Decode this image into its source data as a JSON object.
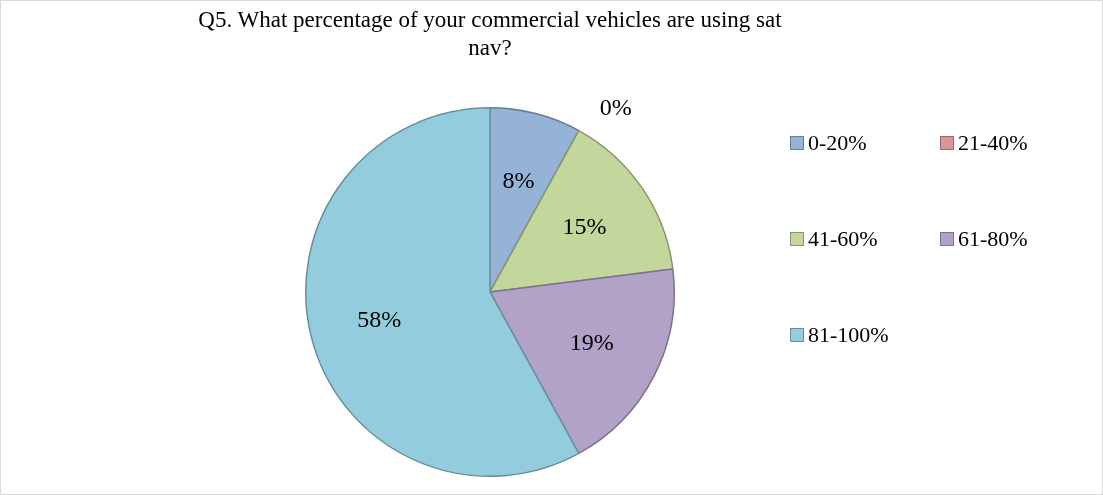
{
  "chart_data": {
    "type": "pie",
    "title": "Q5. What percentage of your commercial vehicles are using sat nav?",
    "categories": [
      "0-20%",
      "21-40%",
      "41-60%",
      "61-80%",
      "81-100%"
    ],
    "values": [
      8,
      0,
      15,
      19,
      58
    ],
    "colors": [
      "#95b3d7",
      "#d99694",
      "#c3d69b",
      "#b3a2c7",
      "#93cddd"
    ],
    "value_labels": [
      "8%",
      "0%",
      "15%",
      "19%",
      "58%"
    ],
    "legend": "right"
  }
}
